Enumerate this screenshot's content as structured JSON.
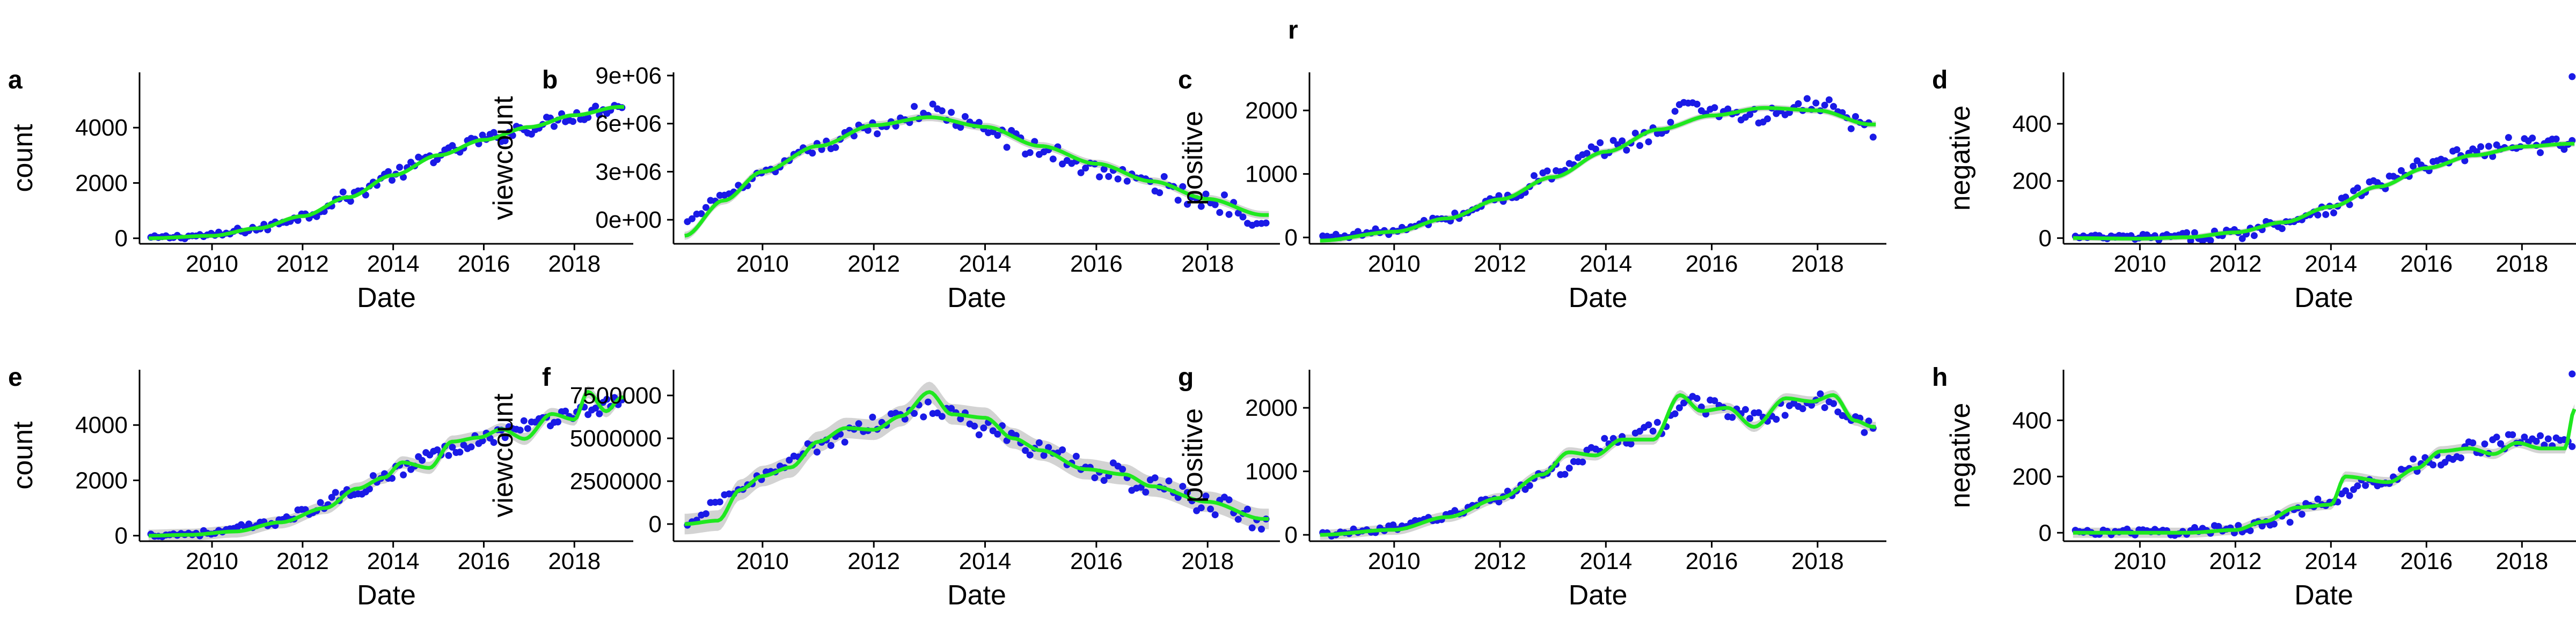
{
  "figure": {
    "label": "r"
  },
  "colors": {
    "points": "#1a1ae6",
    "smooth": "#1fe81f",
    "band": "#c8c8c8",
    "axis": "#000000"
  },
  "chart_data": [
    {
      "panel": "a",
      "type": "scatter",
      "smooth": "loess",
      "xlabel": "Date",
      "ylabel": "count",
      "xlim": [
        2008.4,
        2019.3
      ],
      "ylim": [
        -200,
        6000
      ],
      "xticks": [
        2010,
        2012,
        2014,
        2016,
        2018
      ],
      "yticks": [
        0,
        2000,
        4000
      ],
      "ytick_labels": [
        "0",
        "2000",
        "4000"
      ],
      "anchors": [
        [
          2008.6,
          20
        ],
        [
          2010,
          100
        ],
        [
          2011,
          350
        ],
        [
          2012,
          800
        ],
        [
          2013,
          1500
        ],
        [
          2014,
          2300
        ],
        [
          2015,
          3000
        ],
        [
          2016,
          3550
        ],
        [
          2017,
          4000
        ],
        [
          2018,
          4450
        ],
        [
          2019,
          4800
        ]
      ],
      "smooth_anchors": [
        [
          2008.6,
          0
        ],
        [
          2010,
          90
        ],
        [
          2011,
          360
        ],
        [
          2012,
          800
        ],
        [
          2013,
          1480
        ],
        [
          2014,
          2280
        ],
        [
          2015,
          3000
        ],
        [
          2016,
          3560
        ],
        [
          2017,
          4020
        ],
        [
          2018,
          4450
        ],
        [
          2019,
          4750
        ]
      ],
      "noise": 250,
      "band": 80
    },
    {
      "panel": "b",
      "type": "scatter",
      "smooth": "loess",
      "xlabel": "Date",
      "ylabel": "viewcount",
      "xlim": [
        2008.4,
        2019.3
      ],
      "ylim": [
        -1500000,
        9200000
      ],
      "xticks": [
        2010,
        2012,
        2014,
        2016,
        2018
      ],
      "yticks": [
        0,
        3000000,
        6000000,
        9000000
      ],
      "ytick_labels": [
        "0e+00",
        "3e+06",
        "6e+06",
        "9e+06"
      ],
      "anchors": [
        [
          2008.6,
          -200000
        ],
        [
          2009.3,
          1500000
        ],
        [
          2010,
          2800000
        ],
        [
          2011,
          4500000
        ],
        [
          2012,
          5800000
        ],
        [
          2013,
          6800000
        ],
        [
          2014,
          5600000
        ],
        [
          2015,
          4300000
        ],
        [
          2016,
          3200000
        ],
        [
          2017,
          2200000
        ],
        [
          2018,
          1200000
        ],
        [
          2019,
          200000
        ]
      ],
      "smooth_anchors": [
        [
          2008.6,
          -1000000
        ],
        [
          2009.3,
          1200000
        ],
        [
          2010,
          3000000
        ],
        [
          2011,
          4600000
        ],
        [
          2012,
          5900000
        ],
        [
          2013,
          6400000
        ],
        [
          2014,
          5800000
        ],
        [
          2015,
          4600000
        ],
        [
          2016,
          3500000
        ],
        [
          2017,
          2400000
        ],
        [
          2018,
          1300000
        ],
        [
          2019,
          300000
        ]
      ],
      "noise": 650000,
      "band": 250000
    },
    {
      "panel": "c",
      "type": "scatter",
      "smooth": "loess",
      "xlabel": "Date",
      "ylabel": "positive",
      "xlim": [
        2008.4,
        2019.3
      ],
      "ylim": [
        -100,
        2600
      ],
      "xticks": [
        2010,
        2012,
        2014,
        2016,
        2018
      ],
      "yticks": [
        0,
        1000,
        2000
      ],
      "ytick_labels": [
        "0",
        "1000",
        "2000"
      ],
      "anchors": [
        [
          2008.6,
          10
        ],
        [
          2010,
          100
        ],
        [
          2011,
          300
        ],
        [
          2012,
          600
        ],
        [
          2013,
          1000
        ],
        [
          2014,
          1400
        ],
        [
          2015,
          1650
        ],
        [
          2015.6,
          2150
        ],
        [
          2016,
          2000
        ],
        [
          2017,
          1900
        ],
        [
          2018,
          2100
        ],
        [
          2019,
          1700
        ]
      ],
      "smooth_anchors": [
        [
          2008.6,
          -50
        ],
        [
          2010,
          90
        ],
        [
          2011,
          300
        ],
        [
          2012,
          600
        ],
        [
          2013,
          950
        ],
        [
          2014,
          1350
        ],
        [
          2015,
          1700
        ],
        [
          2016,
          1920
        ],
        [
          2017,
          2040
        ],
        [
          2018,
          2000
        ],
        [
          2019,
          1780
        ]
      ],
      "noise": 130,
      "band": 50
    },
    {
      "panel": "d",
      "type": "scatter",
      "smooth": "loess",
      "xlabel": "Date",
      "ylabel": "negative",
      "xlim": [
        2008.4,
        2019.3
      ],
      "ylim": [
        -20,
        580
      ],
      "xticks": [
        2010,
        2012,
        2014,
        2016,
        2018
      ],
      "yticks": [
        0,
        200,
        400
      ],
      "ytick_labels": [
        "0",
        "200",
        "400"
      ],
      "anchors": [
        [
          2008.6,
          3
        ],
        [
          2010,
          2
        ],
        [
          2011,
          4
        ],
        [
          2012,
          15
        ],
        [
          2013,
          55
        ],
        [
          2014,
          110
        ],
        [
          2015,
          190
        ],
        [
          2016,
          250
        ],
        [
          2017,
          300
        ],
        [
          2018,
          330
        ],
        [
          2019,
          320
        ]
      ],
      "smooth_anchors": [
        [
          2008.6,
          0
        ],
        [
          2010,
          -2
        ],
        [
          2011,
          3
        ],
        [
          2012,
          20
        ],
        [
          2013,
          55
        ],
        [
          2014,
          110
        ],
        [
          2015,
          180
        ],
        [
          2016,
          245
        ],
        [
          2017,
          290
        ],
        [
          2018,
          320
        ],
        [
          2019,
          330
        ]
      ],
      "noise": 28,
      "band": 10,
      "points_extra": [
        [
          2019.05,
          565
        ]
      ]
    },
    {
      "panel": "e",
      "type": "scatter",
      "smooth": "loess",
      "xlabel": "Date",
      "ylabel": "count",
      "xlim": [
        2008.4,
        2019.3
      ],
      "ylim": [
        -200,
        6000
      ],
      "xticks": [
        2010,
        2012,
        2014,
        2016,
        2018
      ],
      "yticks": [
        0,
        2000,
        4000
      ],
      "ytick_labels": [
        "0",
        "2000",
        "4000"
      ],
      "anchors": [
        [
          2008.6,
          20
        ],
        [
          2010,
          100
        ],
        [
          2011,
          350
        ],
        [
          2012,
          800
        ],
        [
          2013,
          1500
        ],
        [
          2014,
          2300
        ],
        [
          2015,
          3000
        ],
        [
          2016,
          3550
        ],
        [
          2017,
          4000
        ],
        [
          2018,
          4450
        ],
        [
          2019,
          4800
        ]
      ],
      "smooth_anchors": [
        [
          2008.6,
          0
        ],
        [
          2009.5,
          30
        ],
        [
          2010.5,
          150
        ],
        [
          2011.5,
          480
        ],
        [
          2012.5,
          1000
        ],
        [
          2013.2,
          1700
        ],
        [
          2013.8,
          2100
        ],
        [
          2014.2,
          2650
        ],
        [
          2014.8,
          2450
        ],
        [
          2015.3,
          3400
        ],
        [
          2015.9,
          3550
        ],
        [
          2016.4,
          3850
        ],
        [
          2016.9,
          3500
        ],
        [
          2017.5,
          4400
        ],
        [
          2018,
          4200
        ],
        [
          2018.3,
          5200
        ],
        [
          2018.7,
          4500
        ],
        [
          2019.05,
          5000
        ]
      ],
      "noise": 250,
      "band": 220
    },
    {
      "panel": "f",
      "type": "scatter",
      "smooth": "loess",
      "xlabel": "Date",
      "ylabel": "viewcount",
      "xlim": [
        2008.4,
        2019.3
      ],
      "ylim": [
        -1000000,
        9000000
      ],
      "xticks": [
        2010,
        2012,
        2014,
        2016,
        2018
      ],
      "yticks": [
        0,
        2500000,
        5000000,
        7500000
      ],
      "ytick_labels": [
        "0",
        "2500000",
        "5000000",
        "7500000"
      ],
      "anchors": [
        [
          2008.6,
          -200000
        ],
        [
          2009.3,
          1500000
        ],
        [
          2010,
          2800000
        ],
        [
          2011,
          4500000
        ],
        [
          2012,
          5800000
        ],
        [
          2013,
          6800000
        ],
        [
          2014,
          5600000
        ],
        [
          2015,
          4300000
        ],
        [
          2016,
          3200000
        ],
        [
          2017,
          2200000
        ],
        [
          2018,
          1200000
        ],
        [
          2019,
          200000
        ]
      ],
      "smooth_anchors": [
        [
          2008.6,
          0
        ],
        [
          2009.2,
          200000
        ],
        [
          2009.6,
          2000000
        ],
        [
          2010,
          2800000
        ],
        [
          2010.5,
          3300000
        ],
        [
          2011,
          4800000
        ],
        [
          2011.5,
          5600000
        ],
        [
          2012,
          5500000
        ],
        [
          2012.5,
          6300000
        ],
        [
          2013,
          7700000
        ],
        [
          2013.4,
          6400000
        ],
        [
          2014,
          6200000
        ],
        [
          2014.5,
          5000000
        ],
        [
          2015,
          4300000
        ],
        [
          2015.8,
          3200000
        ],
        [
          2016.5,
          2900000
        ],
        [
          2017,
          2200000
        ],
        [
          2018,
          1300000
        ],
        [
          2019,
          300000
        ]
      ],
      "noise": 650000,
      "band": 600000
    },
    {
      "panel": "g",
      "type": "scatter",
      "smooth": "loess",
      "xlabel": "Date",
      "ylabel": "positive",
      "xlim": [
        2008.4,
        2019.3
      ],
      "ylim": [
        -100,
        2600
      ],
      "xticks": [
        2010,
        2012,
        2014,
        2016,
        2018
      ],
      "yticks": [
        0,
        1000,
        2000
      ],
      "ytick_labels": [
        "0",
        "1000",
        "2000"
      ],
      "anchors": [
        [
          2008.6,
          10
        ],
        [
          2010,
          100
        ],
        [
          2011,
          300
        ],
        [
          2012,
          600
        ],
        [
          2013,
          1000
        ],
        [
          2014,
          1400
        ],
        [
          2015,
          1650
        ],
        [
          2015.6,
          2150
        ],
        [
          2016,
          2000
        ],
        [
          2017,
          1900
        ],
        [
          2018,
          2100
        ],
        [
          2019,
          1700
        ]
      ],
      "smooth_anchors": [
        [
          2008.6,
          0
        ],
        [
          2010,
          80
        ],
        [
          2011,
          280
        ],
        [
          2012,
          580
        ],
        [
          2012.8,
          950
        ],
        [
          2013.3,
          1300
        ],
        [
          2013.8,
          1250
        ],
        [
          2014.3,
          1500
        ],
        [
          2014.9,
          1500
        ],
        [
          2015.4,
          2200
        ],
        [
          2015.8,
          1950
        ],
        [
          2016.3,
          2000
        ],
        [
          2016.8,
          1700
        ],
        [
          2017.4,
          2150
        ],
        [
          2017.9,
          2100
        ],
        [
          2018.3,
          2200
        ],
        [
          2018.7,
          1800
        ],
        [
          2019.05,
          1700
        ]
      ],
      "noise": 130,
      "band": 80
    },
    {
      "panel": "h",
      "type": "scatter",
      "smooth": "loess",
      "xlabel": "Date",
      "ylabel": "negative",
      "xlim": [
        2008.4,
        2019.3
      ],
      "ylim": [
        -30,
        580
      ],
      "xticks": [
        2010,
        2012,
        2014,
        2016,
        2018
      ],
      "yticks": [
        0,
        200,
        400
      ],
      "ytick_labels": [
        "0",
        "200",
        "400"
      ],
      "anchors": [
        [
          2008.6,
          3
        ],
        [
          2010,
          2
        ],
        [
          2011,
          4
        ],
        [
          2012,
          15
        ],
        [
          2013,
          55
        ],
        [
          2014,
          110
        ],
        [
          2015,
          190
        ],
        [
          2016,
          250
        ],
        [
          2017,
          300
        ],
        [
          2018,
          330
        ],
        [
          2019,
          320
        ]
      ],
      "smooth_anchors": [
        [
          2008.6,
          0
        ],
        [
          2011,
          0
        ],
        [
          2012,
          10
        ],
        [
          2012.6,
          40
        ],
        [
          2013.3,
          90
        ],
        [
          2014,
          100
        ],
        [
          2014.3,
          200
        ],
        [
          2015.2,
          180
        ],
        [
          2015.8,
          230
        ],
        [
          2016.3,
          290
        ],
        [
          2016.9,
          300
        ],
        [
          2017.4,
          280
        ],
        [
          2017.9,
          320
        ],
        [
          2018.4,
          300
        ],
        [
          2018.9,
          300
        ],
        [
          2019.1,
          440
        ]
      ],
      "noise": 28,
      "band": 18,
      "points_extra": [
        [
          2019.05,
          565
        ]
      ]
    }
  ]
}
